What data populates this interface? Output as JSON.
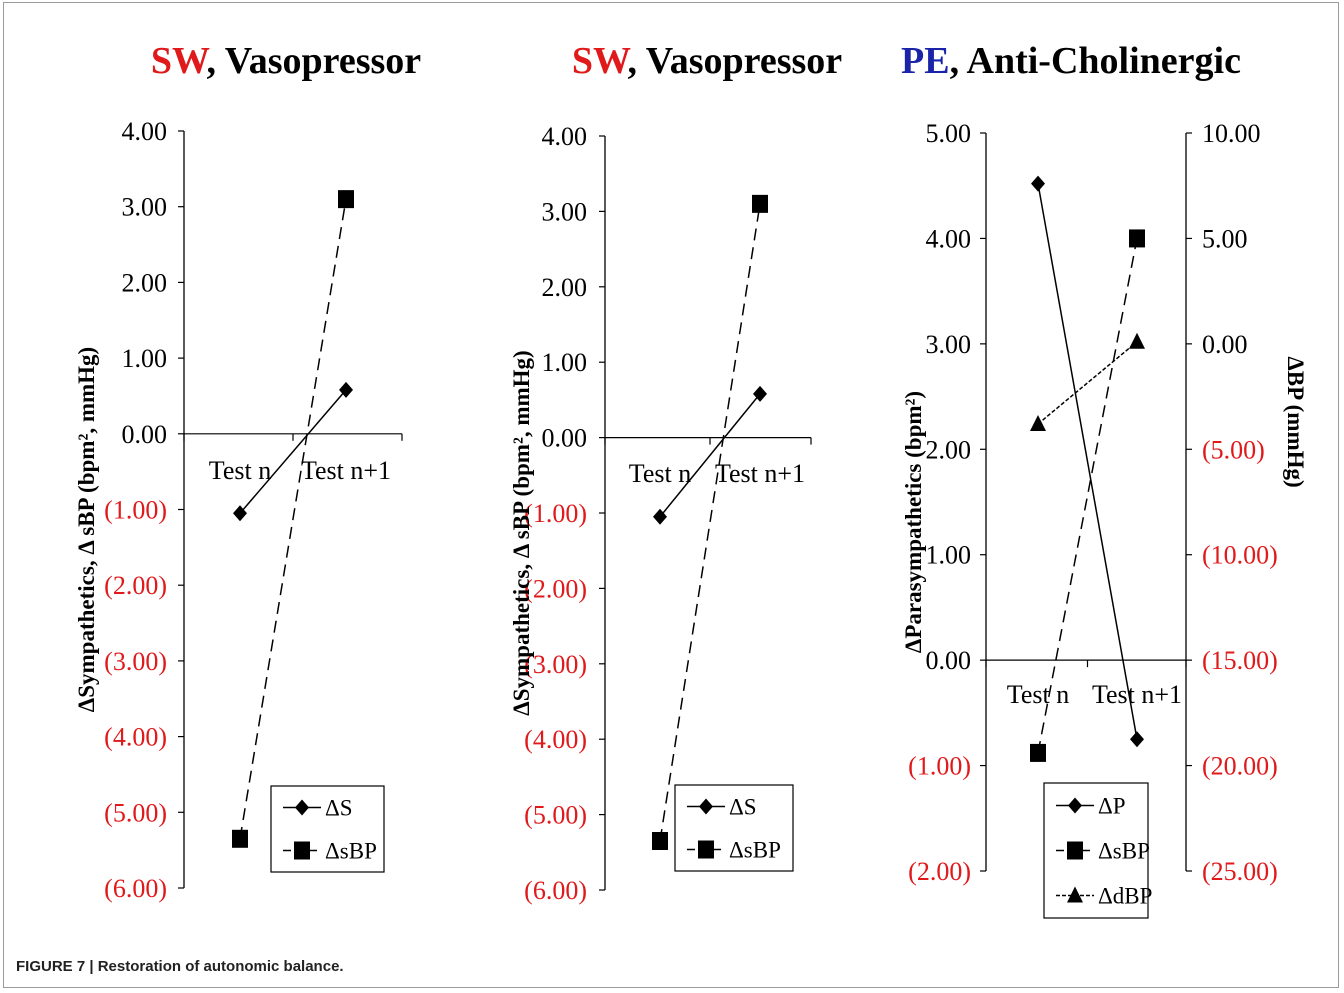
{
  "caption": "FIGURE 7 | Restoration of autonomic balance.",
  "colors": {
    "red": "#e0191b",
    "blue": "#1a24a8",
    "black": "#000000"
  },
  "chart_data": [
    {
      "type": "line",
      "title_prefix": "SW",
      "title_rest": ", Vasopressor",
      "title_prefix_color": "#e0191b",
      "ylabel": "ΔSympathetics, Δ sBP (bpm², mmHg)",
      "categories": [
        "Test n",
        "Test n+1"
      ],
      "ylim": [
        -6,
        4
      ],
      "yticks": [
        "4.00",
        "3.00",
        "2.00",
        "1.00",
        "0.00",
        "(1.00)",
        "(2.00)",
        "(3.00)",
        "(4.00)",
        "(5.00)",
        "(6.00)"
      ],
      "series": [
        {
          "name": "ΔS",
          "values": [
            -1.05,
            0.58
          ],
          "marker": "diamond",
          "dash": "solid"
        },
        {
          "name": "ΔsBP",
          "values": [
            -5.35,
            3.1
          ],
          "marker": "square",
          "dash": "dashed"
        }
      ]
    },
    {
      "type": "line",
      "title_prefix": "SW",
      "title_rest": ", Vasopressor",
      "title_prefix_color": "#e0191b",
      "ylabel": "ΔSympathetics, Δ sBP (bpm², mmHg)",
      "categories": [
        "Test n",
        "Test n+1"
      ],
      "ylim": [
        -6,
        4
      ],
      "yticks": [
        "4.00",
        "3.00",
        "2.00",
        "1.00",
        "0.00",
        "(1.00)",
        "(2.00)",
        "(3.00)",
        "(4.00)",
        "(5.00)",
        "(6.00)"
      ],
      "series": [
        {
          "name": "ΔS",
          "values": [
            -1.05,
            0.58
          ],
          "marker": "diamond",
          "dash": "solid"
        },
        {
          "name": "ΔsBP",
          "values": [
            -5.35,
            3.1
          ],
          "marker": "square",
          "dash": "dashed"
        }
      ]
    },
    {
      "type": "line",
      "title_prefix": "PE",
      "title_rest": ", Anti-Cholinergic",
      "title_prefix_color": "#1a24a8",
      "ylabel": "ΔParasympathetics  (bpm²)",
      "ylabel_right": "ΔBP (mmHg)",
      "categories": [
        "Test n",
        "Test n+1"
      ],
      "ylim": [
        -2,
        5
      ],
      "ylim_right": [
        -25,
        10
      ],
      "yticks": [
        "5.00",
        "4.00",
        "3.00",
        "2.00",
        "1.00",
        "0.00",
        "(1.00)",
        "(2.00)"
      ],
      "yticks_right": [
        "10.00",
        "5.00",
        "0.00",
        "(5.00)",
        "(10.00)",
        "(15.00)",
        "(20.00)",
        "(25.00)"
      ],
      "series": [
        {
          "name": "ΔP",
          "values": [
            4.52,
            -0.75
          ],
          "marker": "diamond",
          "dash": "solid",
          "axis": "left"
        },
        {
          "name": "ΔsBP",
          "values": [
            -19.4,
            5.0
          ],
          "marker": "square",
          "dash": "dashed",
          "axis": "right"
        },
        {
          "name": "ΔdBP",
          "values": [
            -3.8,
            0.1
          ],
          "marker": "triangle",
          "dash": "dotted",
          "axis": "right"
        }
      ]
    }
  ]
}
